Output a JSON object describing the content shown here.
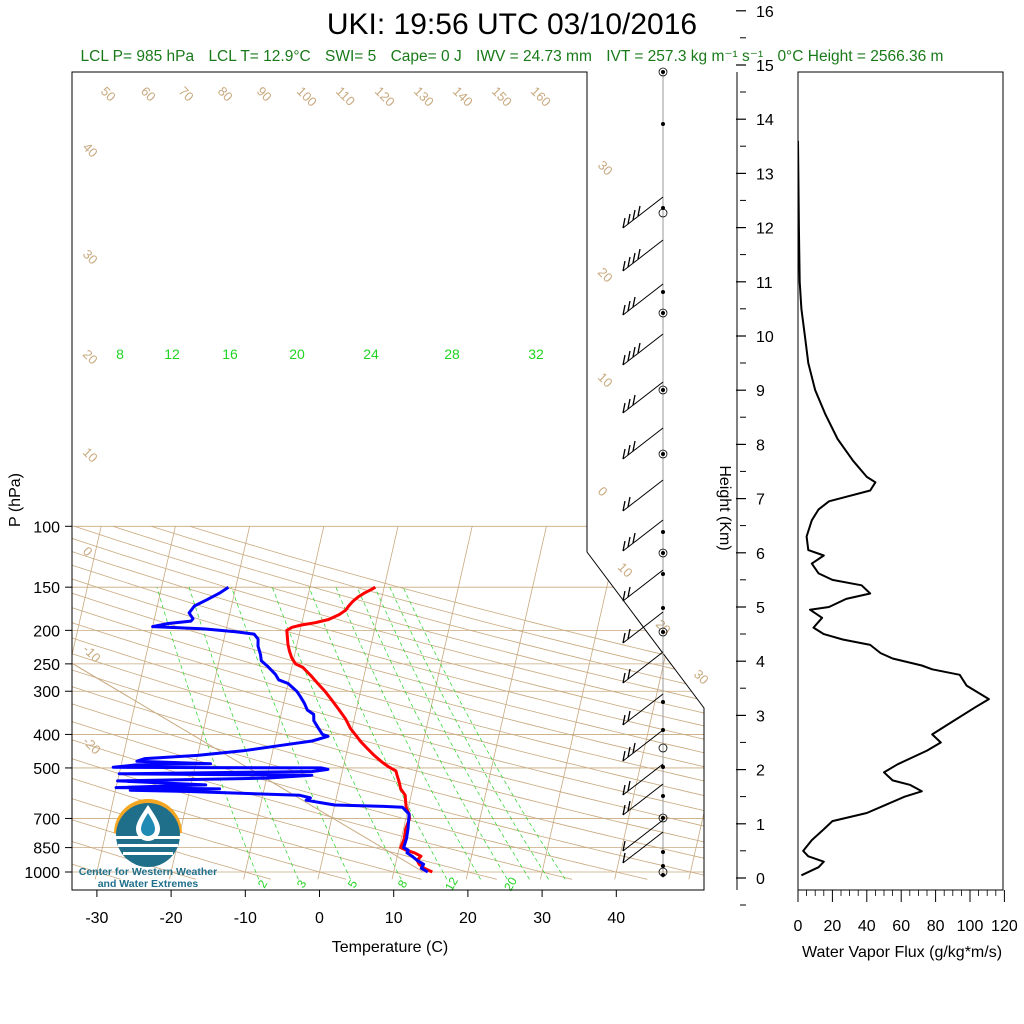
{
  "title": "UKI: 19:56 UTC 03/10/2016",
  "stats": {
    "lcl_p": "LCL P= 985 hPa",
    "lcl_t": "LCL T= 12.9°C",
    "swi": "SWI= 5",
    "cape": "Cape= 0 J",
    "iwv": "IWV = 24.73 mm",
    "ivt": "IVT = 257.3 kg m⁻¹ s⁻¹",
    "freezing_height": "0°C Height = 2566.36 m"
  },
  "logo": {
    "text_line1": "Center for Western Weather",
    "text_line2": "and Water Extremes",
    "colors": {
      "ring": "#f5a623",
      "water": "#1f6f8b",
      "drop": "#1f8bb5"
    }
  },
  "colors": {
    "temperature": "#ff0000",
    "dewpoint": "#0000ff",
    "isotherms": "#c8a97e",
    "mixing_ratio": "#22d422",
    "flux": "#000000"
  },
  "chart_data": [
    {
      "type": "line",
      "subtype": "skew-T log-P sounding",
      "xlabel": "Temperature (C)",
      "ylabel": "P (hPa)",
      "x_ticks": [
        "-30",
        "-20",
        "-10",
        "0",
        "10",
        "20",
        "30",
        "40"
      ],
      "y_ticks": [
        "100",
        "150",
        "200",
        "250",
        "300",
        "400",
        "500",
        "700",
        "850",
        "1000"
      ],
      "y_scale": "log",
      "xlim": [
        -34,
        52
      ],
      "ylim": [
        1050,
        100
      ],
      "isotherm_labels": [
        "50",
        "60",
        "70",
        "80",
        "90",
        "100",
        "110",
        "120",
        "130",
        "140",
        "150",
        "160",
        "40",
        "30",
        "20",
        "10",
        "0",
        "-10",
        "-20",
        "30",
        "20",
        "10",
        "0",
        "10",
        "20",
        "30"
      ],
      "mixing_ratio_labels_top": [
        "8",
        "12",
        "16",
        "20",
        "24",
        "28",
        "32"
      ],
      "mixing_ratio_labels_bottom": [
        "2",
        "3",
        "5",
        "8",
        "12",
        "20"
      ],
      "series": [
        {
          "name": "Temperature",
          "points": [
            [
              15.2,
              1000
            ],
            [
              14.0,
              975
            ],
            [
              13.2,
              950
            ],
            [
              12.8,
              925
            ],
            [
              13.2,
              900
            ],
            [
              12.2,
              880
            ],
            [
              11.0,
              865
            ],
            [
              10.2,
              850
            ],
            [
              10.4,
              800
            ],
            [
              10.3,
              750
            ],
            [
              10.5,
              700
            ],
            [
              10.3,
              680
            ],
            [
              9.7,
              650
            ],
            [
              9.5,
              630
            ],
            [
              9.2,
              600
            ],
            [
              8.4,
              575
            ],
            [
              8.0,
              550
            ],
            [
              7.5,
              525
            ],
            [
              7.2,
              510
            ],
            [
              6.0,
              495
            ],
            [
              5.0,
              480
            ],
            [
              3.8,
              460
            ],
            [
              2.7,
              440
            ],
            [
              1.6,
              420
            ],
            [
              0.6,
              400
            ],
            [
              -0.2,
              385
            ],
            [
              -1.2,
              360
            ],
            [
              -2.3,
              340
            ],
            [
              -3.5,
              320
            ],
            [
              -4.8,
              300
            ],
            [
              -6.0,
              285
            ],
            [
              -7.2,
              270
            ],
            [
              -8.5,
              256
            ],
            [
              -9.6,
              250
            ],
            [
              -10.3,
              240
            ],
            [
              -10.8,
              230
            ],
            [
              -11.2,
              220
            ],
            [
              -11.5,
              210
            ],
            [
              -11.8,
              200
            ],
            [
              -11.2,
              196
            ],
            [
              -10.0,
              193
            ],
            [
              -8.2,
              190
            ],
            [
              -6.5,
              186
            ],
            [
              -5.2,
              180
            ],
            [
              -4.5,
              175
            ],
            [
              -4.2,
              170
            ],
            [
              -3.8,
              165
            ],
            [
              -3.2,
              160
            ],
            [
              -2.5,
              156
            ],
            [
              -1.6,
              152
            ],
            [
              -1.2,
              150
            ]
          ]
        },
        {
          "name": "Dewpoint",
          "points": [
            [
              14.6,
              1000
            ],
            [
              13.6,
              975
            ],
            [
              13.8,
              950
            ],
            [
              12.8,
              925
            ],
            [
              12.0,
              900
            ],
            [
              11.2,
              880
            ],
            [
              11.3,
              865
            ],
            [
              10.6,
              850
            ],
            [
              10.7,
              800
            ],
            [
              10.6,
              750
            ],
            [
              10.4,
              700
            ],
            [
              10.3,
              680
            ],
            [
              9.2,
              650
            ],
            [
              6.0,
              645
            ],
            [
              0,
              640
            ],
            [
              -2.0,
              630
            ],
            [
              -4.0,
              620
            ],
            [
              -3.5,
              610
            ],
            [
              -5.0,
              600
            ],
            [
              -20,
              585
            ],
            [
              -28,
              580
            ],
            [
              -16,
              575
            ],
            [
              -30,
              570
            ],
            [
              -18,
              560
            ],
            [
              -30,
              545
            ],
            [
              -10,
              535
            ],
            [
              -4,
              525
            ],
            [
              -30,
              520
            ],
            [
              -4,
              512
            ],
            [
              -2,
              505
            ],
            [
              -3,
              500
            ],
            [
              -31,
              498
            ],
            [
              -28,
              490
            ],
            [
              -18,
              486
            ],
            [
              -28,
              478
            ],
            [
              -27,
              470
            ],
            [
              -20,
              460
            ],
            [
              -14,
              446
            ],
            [
              -9,
              430
            ],
            [
              -5,
              418
            ],
            [
              -3,
              405
            ],
            [
              -3.8,
              400
            ],
            [
              -4.5,
              385
            ],
            [
              -5.4,
              365
            ],
            [
              -5.6,
              350
            ],
            [
              -6.6,
              340
            ],
            [
              -7.2,
              325
            ],
            [
              -8.0,
              310
            ],
            [
              -8.6,
              300
            ],
            [
              -10.0,
              285
            ],
            [
              -11.4,
              278
            ],
            [
              -12.0,
              268
            ],
            [
              -13.2,
              255
            ],
            [
              -14.3,
              245
            ],
            [
              -14.6,
              235
            ],
            [
              -15.2,
              222
            ],
            [
              -15.4,
              212
            ],
            [
              -16.1,
              205
            ],
            [
              -18.5,
              202
            ],
            [
              -23.0,
              198
            ],
            [
              -28.0,
              196
            ],
            [
              -30.0,
              195
            ],
            [
              -28.0,
              191
            ],
            [
              -25.0,
              188
            ],
            [
              -24.8,
              185
            ],
            [
              -25.5,
              178
            ],
            [
              -25.0,
              170
            ],
            [
              -23.5,
              163
            ],
            [
              -22.0,
              156
            ],
            [
              -21.0,
              150
            ]
          ]
        }
      ]
    },
    {
      "type": "line",
      "subtype": "water vapor flux profile",
      "xlabel": "Water Vapor Flux (g/kg*m/s)",
      "ylabel": "Height (Km)",
      "x_ticks": [
        "0",
        "20",
        "40",
        "60",
        "80",
        "100",
        "120"
      ],
      "y_ticks": [
        "0",
        "1",
        "2",
        "3",
        "4",
        "5",
        "6",
        "7",
        "8",
        "9",
        "10",
        "11",
        "12",
        "13",
        "14",
        "15",
        "16"
      ],
      "xlim": [
        0,
        120
      ],
      "ylim": [
        -0.2,
        16.3
      ],
      "series": [
        {
          "name": "Water Vapor Flux",
          "points": [
            [
              2,
              0.05
            ],
            [
              12,
              0.2
            ],
            [
              15,
              0.3
            ],
            [
              6,
              0.4
            ],
            [
              3,
              0.5
            ],
            [
              8,
              0.7
            ],
            [
              15,
              0.9
            ],
            [
              20,
              1.05
            ],
            [
              40,
              1.2
            ],
            [
              62,
              1.5
            ],
            [
              72,
              1.6
            ],
            [
              65,
              1.72
            ],
            [
              55,
              1.8
            ],
            [
              50,
              1.95
            ],
            [
              58,
              2.1
            ],
            [
              75,
              2.35
            ],
            [
              83,
              2.5
            ],
            [
              78,
              2.65
            ],
            [
              88,
              2.85
            ],
            [
              103,
              3.15
            ],
            [
              111,
              3.3
            ],
            [
              98,
              3.55
            ],
            [
              94,
              3.75
            ],
            [
              78,
              3.85
            ],
            [
              72,
              3.92
            ],
            [
              55,
              4.05
            ],
            [
              48,
              4.15
            ],
            [
              42,
              4.3
            ],
            [
              26,
              4.4
            ],
            [
              15,
              4.5
            ],
            [
              9,
              4.62
            ],
            [
              14,
              4.8
            ],
            [
              7,
              4.95
            ],
            [
              18,
              5.0
            ],
            [
              28,
              5.15
            ],
            [
              42,
              5.25
            ],
            [
              37,
              5.4
            ],
            [
              20,
              5.5
            ],
            [
              12,
              5.62
            ],
            [
              8,
              5.8
            ],
            [
              15,
              5.95
            ],
            [
              6,
              6.05
            ],
            [
              5,
              6.3
            ],
            [
              8,
              6.6
            ],
            [
              12,
              6.8
            ],
            [
              18,
              6.95
            ],
            [
              42,
              7.15
            ],
            [
              45,
              7.3
            ],
            [
              40,
              7.4
            ],
            [
              32,
              7.7
            ],
            [
              23,
              8.1
            ],
            [
              16,
              8.55
            ],
            [
              10,
              9.0
            ],
            [
              6,
              9.5
            ],
            [
              4,
              10.0
            ],
            [
              2,
              10.5
            ],
            [
              1,
              11.0
            ],
            [
              0.5,
              12.0
            ],
            [
              0,
              13.6
            ]
          ]
        }
      ]
    }
  ]
}
